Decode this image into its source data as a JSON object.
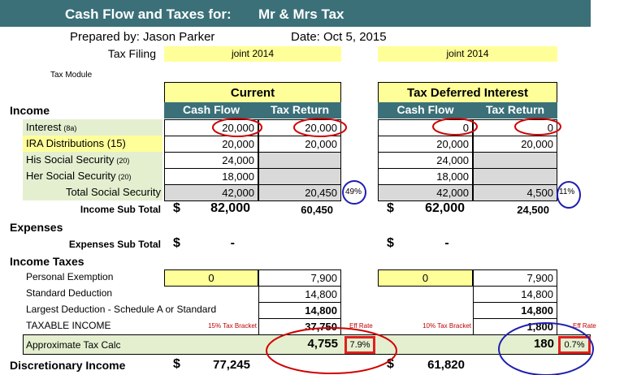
{
  "header": {
    "title": "Cash Flow and Taxes for:",
    "client": "Mr & Mrs Tax",
    "prepared_by": "Prepared by:  Jason Parker",
    "date": "Date:  Oct 5, 2015",
    "filing_label": "Tax Filing",
    "module": "Tax Module",
    "currency": "$",
    "eff_label": "Eff Rate"
  },
  "scenarios": [
    {
      "filing": "joint 2014",
      "title": "Current",
      "columns": [
        "Cash Flow",
        "Tax Return"
      ]
    },
    {
      "filing": "joint 2014",
      "title": "Tax Deferred Interest",
      "columns": [
        "Cash Flow",
        "Tax Return"
      ]
    }
  ],
  "sections": {
    "income": "Income",
    "expenses": "Expenses",
    "income_taxes": "Income Taxes"
  },
  "income_rows": [
    {
      "label": "Interest",
      "note": "(8a)",
      "cells": [
        "20,000",
        "20,000",
        "0",
        "0"
      ]
    },
    {
      "label": "IRA Distributions (15)",
      "cells": [
        "20,000",
        "20,000",
        "20,000",
        "20,000"
      ]
    },
    {
      "label": "His Social Security",
      "note": "(20)",
      "cells": [
        "24,000",
        null,
        "24,000",
        null
      ]
    },
    {
      "label": "Her Social Security",
      "note": "(20)",
      "cells": [
        "18,000",
        null,
        "18,000",
        null
      ]
    },
    {
      "label": "Total Social Security",
      "cells": [
        "42,000",
        "20,450",
        "42,000",
        "4,500"
      ],
      "percents": [
        "49%",
        "11%"
      ]
    }
  ],
  "income_subtotal": {
    "label": "Income Sub Total",
    "cells": [
      "82,000",
      "60,450",
      "62,000",
      "24,500"
    ]
  },
  "expenses_subtotal": {
    "label": "Expenses Sub Total",
    "cells": [
      "-",
      null,
      "-",
      null
    ]
  },
  "tax_rows": [
    {
      "label": "Personal Exemption",
      "cells": [
        "0",
        "7,900",
        "0",
        "7,900"
      ]
    },
    {
      "label": "Standard Deduction",
      "cells": [
        null,
        "14,800",
        null,
        "14,800"
      ]
    },
    {
      "label": "Largest Deduction - Schedule A or Standard",
      "cells": [
        null,
        "14,800",
        null,
        "14,800"
      ]
    },
    {
      "label": "TAXABLE INCOME",
      "cells": [
        null,
        "37,750",
        null,
        "1,800"
      ],
      "brackets": [
        "15% Tax Bracket",
        "10% Tax Bracket"
      ]
    }
  ],
  "approx_tax": {
    "label": "Approximate Tax Calc",
    "cells": [
      null,
      "4,755",
      null,
      "180"
    ],
    "rates": [
      "7.9%",
      "0.7%"
    ]
  },
  "discretionary": {
    "label": "Discretionary Income",
    "cells": [
      "77,245",
      null,
      "61,820",
      null
    ]
  }
}
